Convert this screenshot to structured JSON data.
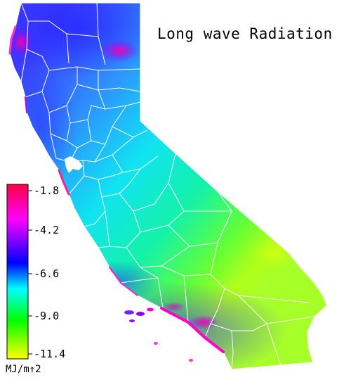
{
  "title": "Long wave Radiation",
  "legend": {
    "ticks": [
      "-1.8",
      "-4.2",
      "-6.6",
      "-9.0",
      "-11.4"
    ],
    "units": "MJ/m↑2",
    "range": [
      -11.4,
      -1.8
    ],
    "colors": [
      "#ff0044",
      "#ff00ff",
      "#0000ff",
      "#00ffff",
      "#00ff00",
      "#ffff00"
    ]
  }
}
